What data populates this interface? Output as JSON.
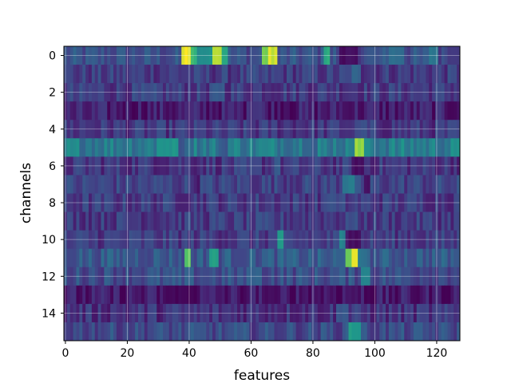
{
  "chart_data": {
    "type": "heatmap",
    "title": "",
    "xlabel": "features",
    "ylabel": "channels",
    "colormap": "viridis",
    "grid": true,
    "n_features": 128,
    "n_channels": 16,
    "xlim": [
      -0.5,
      127.5
    ],
    "ylim": [
      15.5,
      -0.5
    ],
    "x_ticks": [
      0,
      20,
      40,
      60,
      80,
      100,
      120
    ],
    "y_ticks": [
      0,
      2,
      4,
      6,
      8,
      10,
      12,
      14
    ],
    "value_range": [
      0,
      1
    ],
    "rows": [
      {
        "channel": 0,
        "base": 0.3,
        "segments": [
          [
            38,
            41,
            0.98
          ],
          [
            41,
            43,
            0.75
          ],
          [
            43,
            48,
            0.6
          ],
          [
            48,
            51,
            0.95
          ],
          [
            51,
            53,
            0.7
          ],
          [
            64,
            66,
            0.85
          ],
          [
            66,
            69,
            0.95
          ],
          [
            84,
            86,
            0.7
          ],
          [
            89,
            95,
            0.05
          ],
          [
            105,
            110,
            0.45
          ],
          [
            118,
            121,
            0.5
          ]
        ]
      },
      {
        "channel": 1,
        "base": 0.22,
        "segments": [
          [
            93,
            96,
            0.4
          ]
        ]
      },
      {
        "channel": 2,
        "base": 0.22,
        "segments": [
          [
            48,
            52,
            0.35
          ]
        ]
      },
      {
        "channel": 3,
        "base": 0.1,
        "segments": [
          [
            60,
            64,
            0.2
          ],
          [
            90,
            93,
            0.05
          ]
        ]
      },
      {
        "channel": 4,
        "base": 0.2,
        "segments": [
          [
            94,
            98,
            0.3
          ]
        ]
      },
      {
        "channel": 5,
        "base": 0.52,
        "segments": [
          [
            30,
            37,
            0.62
          ],
          [
            37,
            39,
            0.3
          ],
          [
            50,
            53,
            0.35
          ],
          [
            80,
            82,
            0.35
          ],
          [
            92,
            94,
            0.55
          ],
          [
            94,
            97,
            0.88
          ],
          [
            97,
            99,
            0.6
          ]
        ]
      },
      {
        "channel": 6,
        "base": 0.2,
        "segments": [
          [
            93,
            97,
            0.05
          ],
          [
            68,
            70,
            0.35
          ]
        ]
      },
      {
        "channel": 7,
        "base": 0.25,
        "segments": [
          [
            42,
            44,
            0.1
          ],
          [
            90,
            94,
            0.5
          ],
          [
            97,
            99,
            0.05
          ]
        ]
      },
      {
        "channel": 8,
        "base": 0.22,
        "segments": [
          [
            84,
            88,
            0.3
          ]
        ]
      },
      {
        "channel": 9,
        "base": 0.22,
        "segments": [
          [
            91,
            94,
            0.3
          ]
        ]
      },
      {
        "channel": 10,
        "base": 0.22,
        "segments": [
          [
            69,
            71,
            0.62
          ],
          [
            89,
            91,
            0.55
          ],
          [
            92,
            96,
            0.05
          ]
        ]
      },
      {
        "channel": 11,
        "base": 0.35,
        "segments": [
          [
            39,
            41,
            0.8
          ],
          [
            47,
            50,
            0.65
          ],
          [
            91,
            93,
            0.85
          ],
          [
            93,
            95,
            0.95
          ],
          [
            95,
            97,
            0.5
          ]
        ]
      },
      {
        "channel": 12,
        "base": 0.3,
        "segments": [
          [
            60,
            64,
            0.4
          ],
          [
            96,
            99,
            0.55
          ]
        ]
      },
      {
        "channel": 13,
        "base": 0.08,
        "segments": [
          [
            32,
            40,
            0.02
          ],
          [
            64,
            70,
            0.03
          ],
          [
            97,
            101,
            0.02
          ]
        ]
      },
      {
        "channel": 14,
        "base": 0.18,
        "segments": [
          [
            88,
            92,
            0.35
          ]
        ]
      },
      {
        "channel": 15,
        "base": 0.28,
        "segments": [
          [
            92,
            96,
            0.65
          ]
        ]
      }
    ],
    "noise_amplitude": 0.12
  }
}
